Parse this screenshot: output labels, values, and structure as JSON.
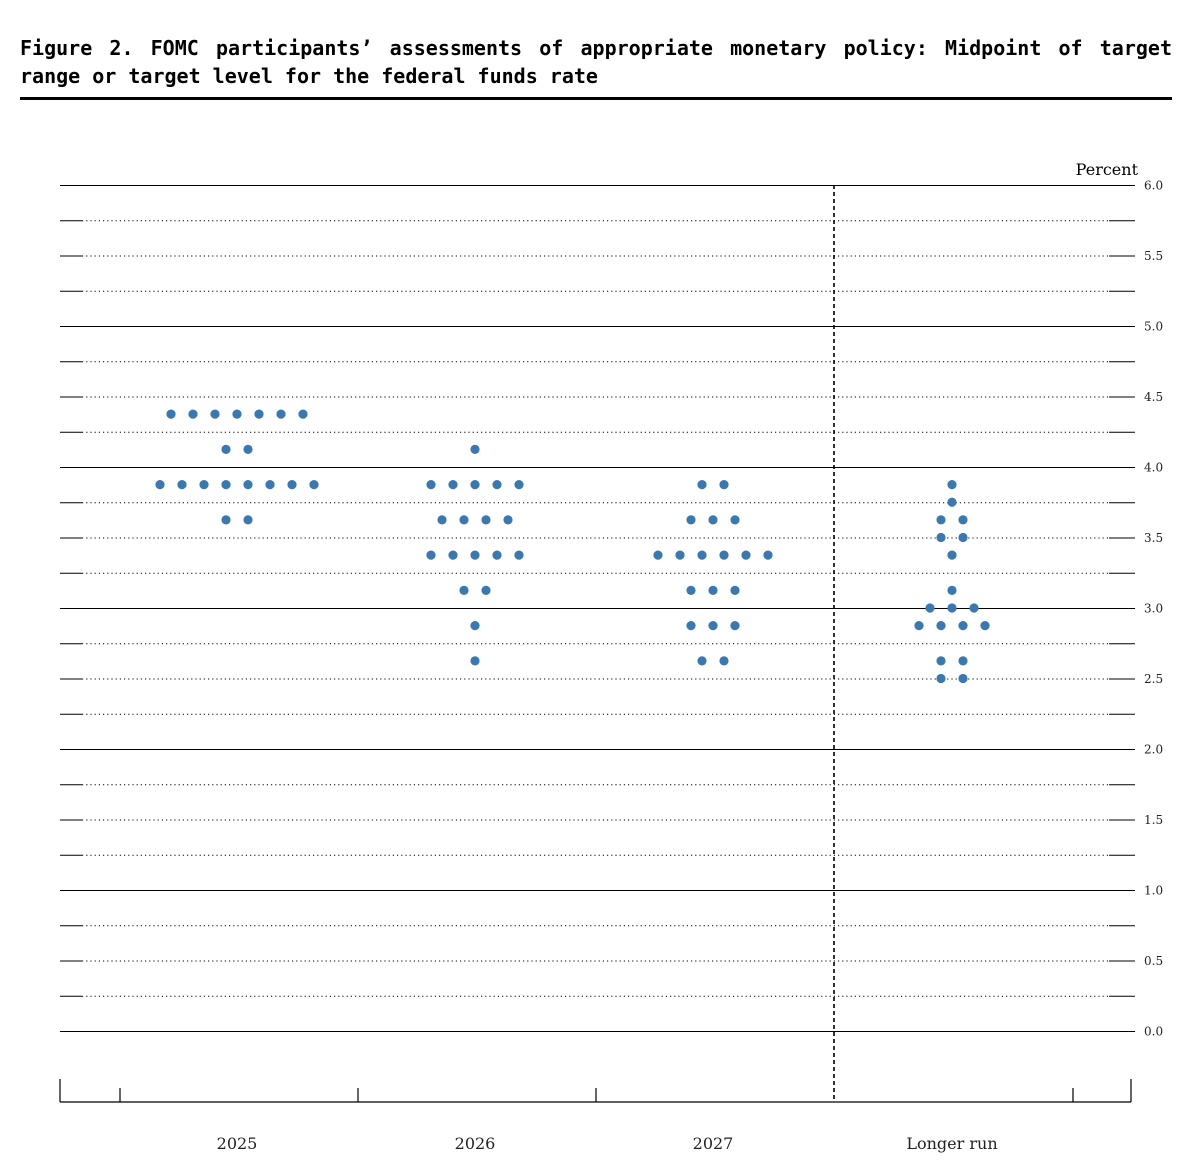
{
  "figure": {
    "title": "Figure 2.  FOMC participants’ assessments of appropriate monetary policy:  Midpoint of target range or target level for the federal funds rate"
  },
  "chart_data": {
    "type": "scatter",
    "title": "Figure 2.  FOMC participants’ assessments of appropriate monetary policy:  Midpoint of target range or target level for the federal funds rate",
    "ylabel": "Percent",
    "ylim": [
      0.0,
      6.0
    ],
    "yticks": [
      "0.0",
      "0.5",
      "1.0",
      "1.5",
      "2.0",
      "2.5",
      "3.0",
      "3.5",
      "4.0",
      "4.5",
      "5.0",
      "5.5",
      "6.0"
    ],
    "categories": [
      "2025",
      "2026",
      "2027",
      "Longer run"
    ],
    "grid": true,
    "separator_before": "Longer run",
    "dot_color": "#3a78ad",
    "points": [
      {
        "category": "2025",
        "rates": [
          {
            "rate": 4.375,
            "count": 7
          },
          {
            "rate": 4.125,
            "count": 2
          },
          {
            "rate": 3.875,
            "count": 8
          },
          {
            "rate": 3.625,
            "count": 2
          }
        ]
      },
      {
        "category": "2026",
        "rates": [
          {
            "rate": 4.125,
            "count": 1
          },
          {
            "rate": 3.875,
            "count": 5
          },
          {
            "rate": 3.625,
            "count": 4
          },
          {
            "rate": 3.375,
            "count": 5
          },
          {
            "rate": 3.125,
            "count": 2
          },
          {
            "rate": 2.875,
            "count": 1
          },
          {
            "rate": 2.625,
            "count": 1
          }
        ]
      },
      {
        "category": "2027",
        "rates": [
          {
            "rate": 3.875,
            "count": 2
          },
          {
            "rate": 3.625,
            "count": 3
          },
          {
            "rate": 3.375,
            "count": 6
          },
          {
            "rate": 3.125,
            "count": 3
          },
          {
            "rate": 2.875,
            "count": 3
          },
          {
            "rate": 2.625,
            "count": 2
          }
        ]
      },
      {
        "category": "Longer run",
        "rates": [
          {
            "rate": 3.875,
            "count": 1
          },
          {
            "rate": 3.75,
            "count": 1
          },
          {
            "rate": 3.625,
            "count": 2
          },
          {
            "rate": 3.5,
            "count": 2
          },
          {
            "rate": 3.375,
            "count": 1
          },
          {
            "rate": 3.125,
            "count": 1
          },
          {
            "rate": 3.0,
            "count": 3
          },
          {
            "rate": 2.875,
            "count": 4
          },
          {
            "rate": 2.625,
            "count": 2
          },
          {
            "rate": 2.5,
            "count": 2
          }
        ]
      }
    ]
  }
}
